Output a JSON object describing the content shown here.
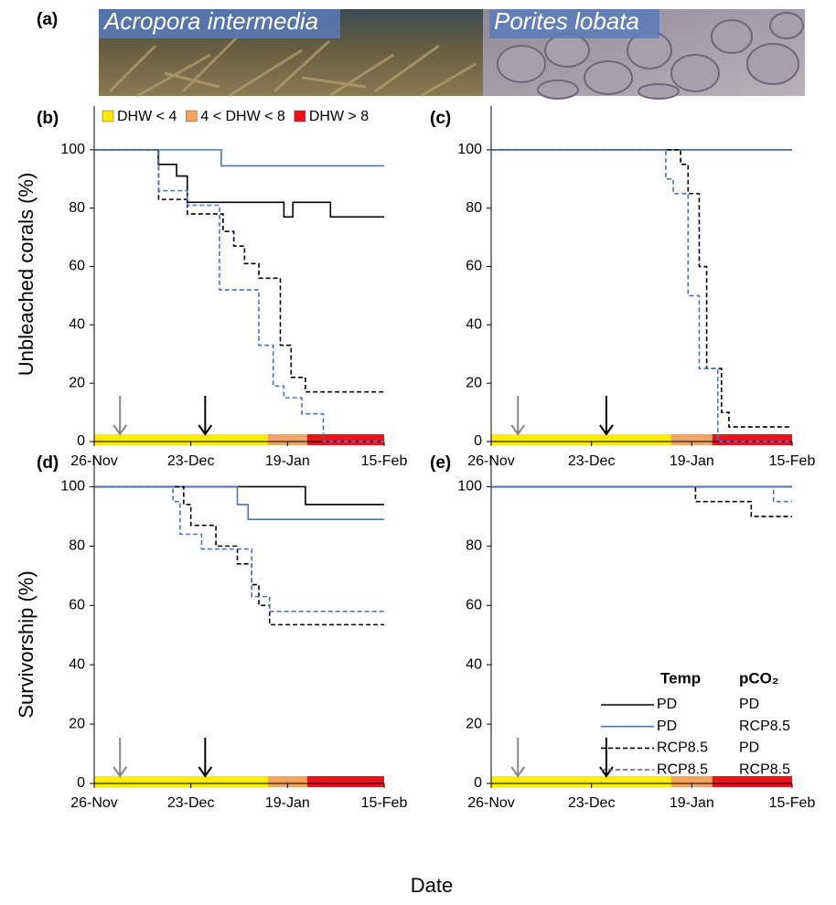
{
  "photo": {
    "label": "(a)",
    "captions": [
      "Acropora intermedia",
      "Porites lobata"
    ]
  },
  "x_label": "Date",
  "dhw_bands": [
    {
      "name": "DHW < 4",
      "color": "#ffed00",
      "start": 0,
      "end": 48.5
    },
    {
      "name": "4 < DHW < 8",
      "color": "#f4a460",
      "start": 48.5,
      "end": 59.5
    },
    {
      "name": "DHW > 8",
      "color": "#e8141b",
      "start": 59.5,
      "end": 81
    }
  ],
  "arrows": [
    {
      "x": 7.2,
      "color": "#888888"
    },
    {
      "x": 31,
      "color": "#000000"
    }
  ],
  "legend": {
    "columns": [
      "Temp",
      "pCO₂"
    ],
    "entries": [
      {
        "temp": "PD",
        "pco2": "PD",
        "color": "#000000",
        "dashed": false
      },
      {
        "temp": "PD",
        "pco2": "RCP8.5",
        "color": "#4f73b5",
        "dashed": false
      },
      {
        "temp": "RCP8.5",
        "pco2": "PD",
        "color": "#000000",
        "dashed": true
      },
      {
        "temp": "RCP8.5",
        "pco2": "RCP8.5",
        "color": "#4f73b5",
        "dashed": true
      }
    ]
  },
  "chart_data": [
    {
      "type": "line",
      "title": "(b)",
      "ylabel": "Unbleached corals (%)",
      "xlim": [
        0,
        81
      ],
      "xticks": [
        {
          "value": 0,
          "label": "26-Nov"
        },
        {
          "value": 27,
          "label": "23-Dec"
        },
        {
          "value": 54,
          "label": "19-Jan"
        },
        {
          "value": 81,
          "label": "15-Feb"
        }
      ],
      "ylim": [
        0,
        115
      ],
      "yticks": [
        0,
        20,
        40,
        60,
        80,
        100
      ],
      "series": [
        {
          "x": [
            0,
            17.9,
            17.9,
            23,
            23,
            26,
            26,
            53,
            53,
            55.5,
            55.5,
            66,
            66,
            81
          ],
          "values": [
            100,
            100,
            95,
            95,
            91,
            91,
            82,
            82,
            77,
            77,
            82,
            82,
            77,
            77
          ]
        },
        {
          "x": [
            0,
            35.5,
            35.5,
            81
          ],
          "values": [
            100,
            100,
            94.5,
            94.5
          ]
        },
        {
          "x": [
            0,
            18,
            18,
            26,
            26,
            36,
            36,
            39,
            39,
            42,
            42,
            46,
            46,
            52,
            52,
            55,
            55,
            59,
            59,
            81
          ],
          "values": [
            100,
            100,
            83,
            83,
            78,
            78,
            72,
            72,
            67,
            67,
            61,
            61,
            56,
            56,
            33,
            33,
            22,
            22,
            17,
            17
          ]
        },
        {
          "x": [
            0,
            18,
            18,
            26,
            26,
            35,
            35,
            46,
            46,
            50,
            50,
            53,
            53,
            58,
            58,
            64,
            64,
            81
          ],
          "values": [
            100,
            100,
            86,
            86,
            81,
            81,
            52,
            52,
            33,
            33,
            19,
            19,
            15,
            15,
            9.5,
            9.5,
            0,
            0
          ]
        }
      ]
    },
    {
      "type": "line",
      "title": "(c)",
      "xlim": [
        0,
        81
      ],
      "xticks": [
        {
          "value": 0,
          "label": "26-Nov"
        },
        {
          "value": 27,
          "label": "23-Dec"
        },
        {
          "value": 54,
          "label": "19-Jan"
        },
        {
          "value": 81,
          "label": "15-Feb"
        }
      ],
      "ylim": [
        0,
        115
      ],
      "yticks": [
        0,
        20,
        40,
        60,
        80,
        100
      ],
      "series": [
        {
          "x": [
            0,
            81
          ],
          "values": [
            100,
            100
          ]
        },
        {
          "x": [
            0,
            81
          ],
          "values": [
            100,
            100
          ]
        },
        {
          "x": [
            0,
            51,
            51,
            53,
            53,
            56,
            56,
            58,
            58,
            62,
            62,
            64,
            64,
            81
          ],
          "values": [
            100,
            100,
            95,
            95,
            85,
            85,
            60,
            60,
            25,
            25,
            10,
            10,
            5,
            5
          ]
        },
        {
          "x": [
            0,
            47,
            47,
            49,
            49,
            53,
            53,
            56,
            56,
            61,
            61,
            81
          ],
          "values": [
            100,
            100,
            90,
            90,
            85,
            85,
            50,
            50,
            25,
            25,
            0,
            0
          ]
        }
      ]
    },
    {
      "type": "line",
      "title": "(d)",
      "ylabel": "Survivorship (%)",
      "xlim": [
        0,
        81
      ],
      "xticks": [
        {
          "value": 0,
          "label": "26-Nov"
        },
        {
          "value": 27,
          "label": "23-Dec"
        },
        {
          "value": 54,
          "label": "19-Jan"
        },
        {
          "value": 81,
          "label": "15-Feb"
        }
      ],
      "ylim": [
        0,
        110
      ],
      "yticks": [
        0,
        20,
        40,
        60,
        80,
        100
      ],
      "series": [
        {
          "x": [
            0,
            59,
            59,
            81
          ],
          "values": [
            100,
            100,
            94,
            94
          ]
        },
        {
          "x": [
            0,
            40,
            40,
            43,
            43,
            81
          ],
          "values": [
            100,
            100,
            94,
            94,
            89,
            89
          ]
        },
        {
          "x": [
            0,
            25,
            25,
            27,
            27,
            34,
            34,
            40,
            40,
            44,
            44,
            46,
            46,
            49,
            49,
            81
          ],
          "values": [
            100,
            100,
            94,
            94,
            87,
            87,
            80,
            80,
            74,
            74,
            67,
            67,
            60,
            60,
            53.5,
            53.5
          ]
        },
        {
          "x": [
            0,
            22,
            22,
            24,
            24,
            30,
            30,
            44,
            44,
            49,
            49,
            81
          ],
          "values": [
            100,
            100,
            95,
            95,
            84,
            84,
            79,
            79,
            63,
            63,
            58,
            58
          ]
        }
      ]
    },
    {
      "type": "line",
      "title": "(e)",
      "xlim": [
        0,
        81
      ],
      "xticks": [
        {
          "value": 0,
          "label": "26-Nov"
        },
        {
          "value": 27,
          "label": "23-Dec"
        },
        {
          "value": 54,
          "label": "19-Jan"
        },
        {
          "value": 81,
          "label": "15-Feb"
        }
      ],
      "ylim": [
        0,
        110
      ],
      "yticks": [
        0,
        20,
        40,
        60,
        80,
        100
      ],
      "series": [
        {
          "x": [
            0,
            81
          ],
          "values": [
            100,
            100
          ]
        },
        {
          "x": [
            0,
            81
          ],
          "values": [
            100,
            100
          ]
        },
        {
          "x": [
            0,
            55,
            55,
            70,
            70,
            81
          ],
          "values": [
            100,
            100,
            95,
            95,
            90,
            90
          ]
        },
        {
          "x": [
            0,
            76,
            76,
            81
          ],
          "values": [
            100,
            100,
            95,
            95
          ]
        }
      ]
    }
  ]
}
